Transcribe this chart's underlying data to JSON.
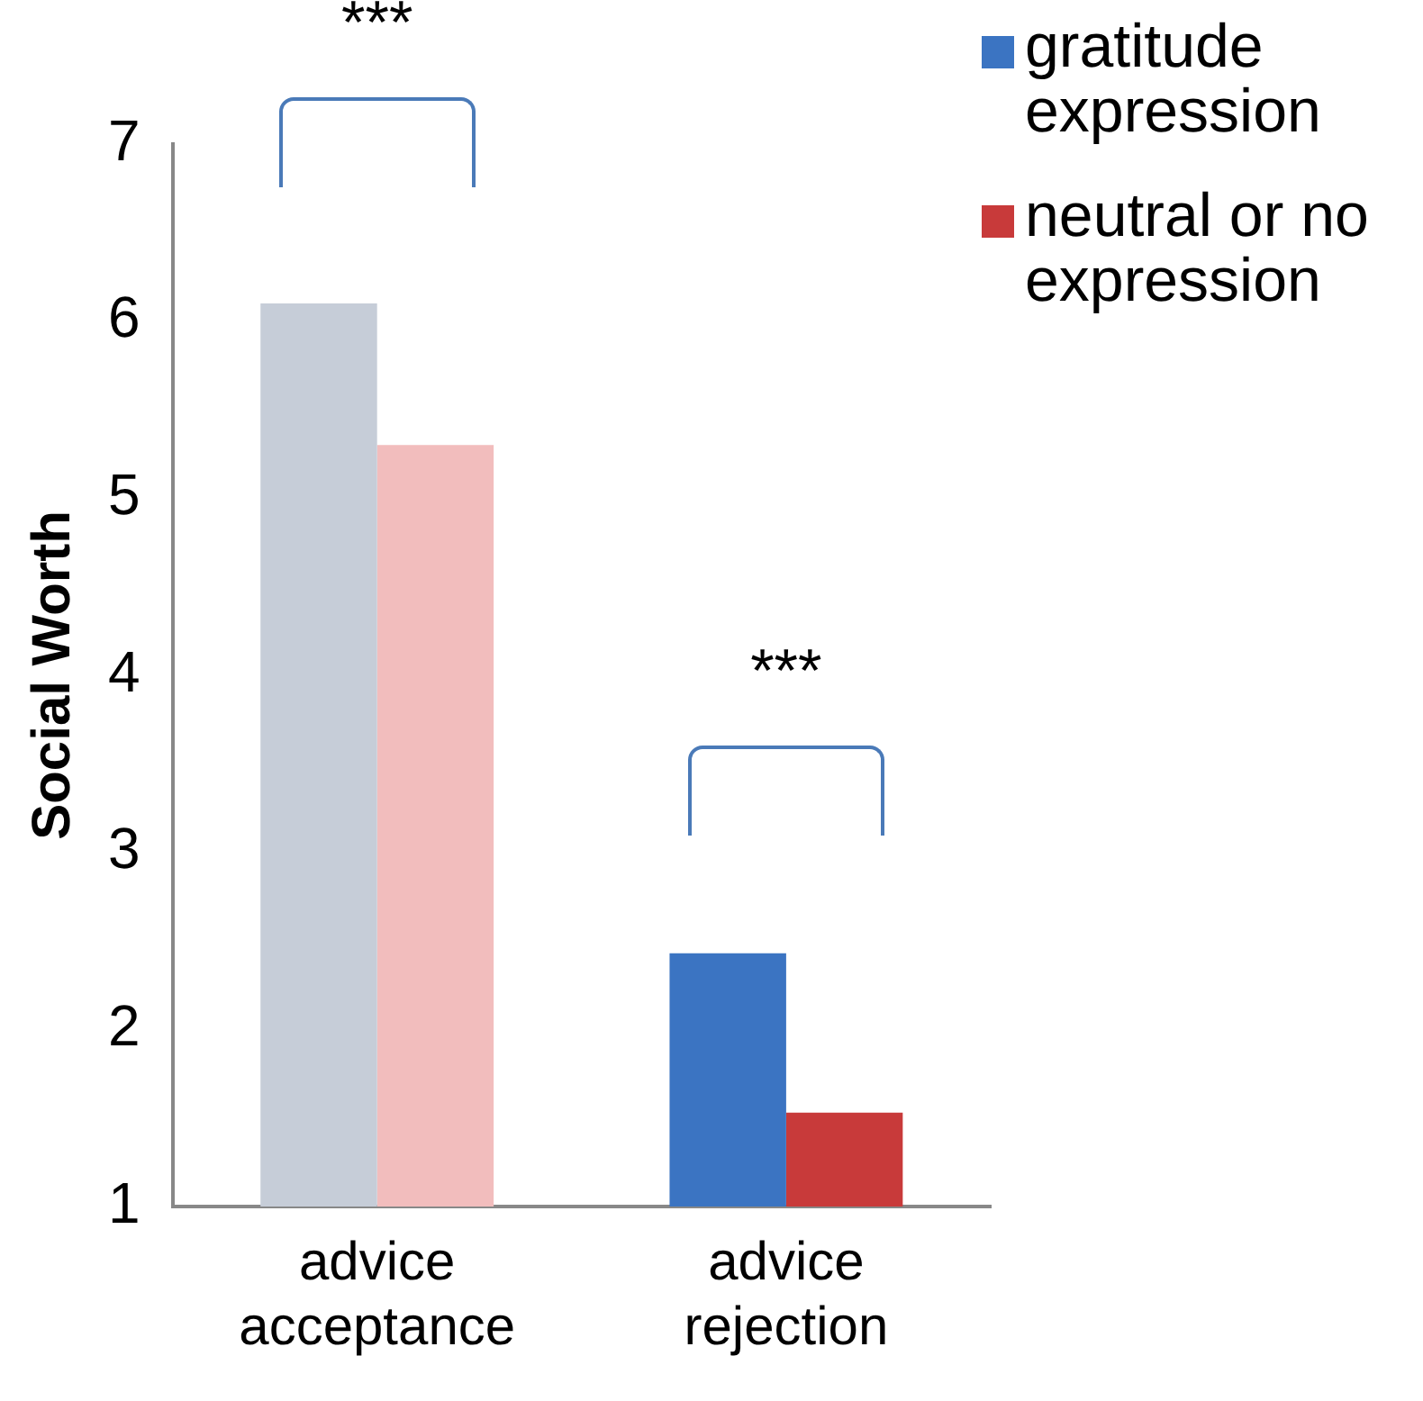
{
  "chart_data": {
    "type": "bar",
    "ylabel": "Social Worth",
    "categories": [
      "advice acceptance",
      "advice rejection"
    ],
    "series": [
      {
        "name": "gratitude expression",
        "color": "#3b74c2",
        "colors": [
          "#c6cdd8",
          "#3b74c2"
        ],
        "values": [
          6.1,
          2.43
        ]
      },
      {
        "name": "neutral or no expression",
        "color": "#c83a3a",
        "colors": [
          "#f2bdbd",
          "#c83a3a"
        ],
        "values": [
          5.3,
          1.53
        ]
      }
    ],
    "ylim": [
      1,
      7
    ],
    "yticks": [
      1,
      2,
      3,
      4,
      5,
      6,
      7
    ],
    "grid": false,
    "legend": "top right",
    "annotations": [
      "***",
      "***"
    ]
  }
}
